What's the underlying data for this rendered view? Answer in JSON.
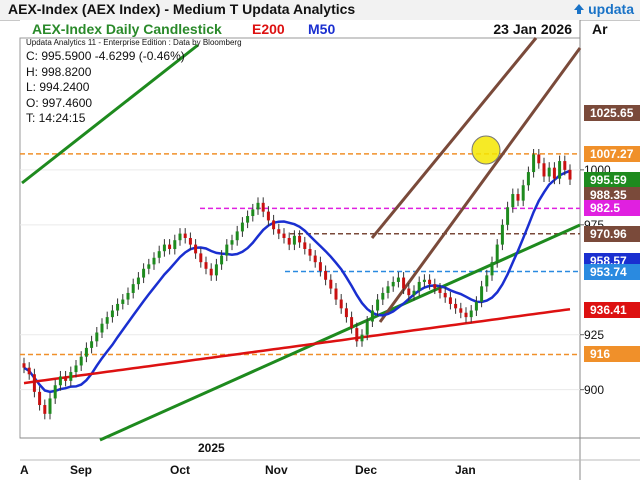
{
  "header": {
    "title": "AEX-Index (AEX Index) - Medium T  Updata Analytics",
    "brand": "updata"
  },
  "subheader": {
    "title": "AEX-Index Daily Candlestick",
    "ema": "E200",
    "ma": "M50",
    "date": "23 Jan 2026"
  },
  "right_axis_header": "Ar",
  "info": {
    "source": "Updata Analytics 11 - Enterprise Edition : Data by Bloomberg",
    "close": "C: 995.5900  -4.6299 (-0.46%)",
    "high": "H: 998.8200",
    "low": "L: 994.2400",
    "open": "O: 997.4600",
    "time": "T: 14:24:15"
  },
  "chart_data": {
    "type": "candlestick",
    "title": "AEX-Index Daily Candlestick",
    "y_range": [
      878,
      1060
    ],
    "y_ticks": [
      900,
      925,
      975,
      1000
    ],
    "x_labels": [
      "A",
      "Sep",
      "Oct",
      "Nov",
      "Dec",
      "Jan"
    ],
    "year_label": "2025",
    "price_labels": [
      {
        "text": "1025.65",
        "value": 1025.65,
        "color": "#7a4a3a"
      },
      {
        "text": "1007.27",
        "value": 1007.27,
        "color": "#f0902a"
      },
      {
        "text": "995.59",
        "value": 995.59,
        "color": "#1e8a1e"
      },
      {
        "text": "988.35",
        "value": 988.35,
        "color": "#7a4a3a"
      },
      {
        "text": "982.5",
        "value": 982.5,
        "color": "#e020e0"
      },
      {
        "text": "970.96",
        "value": 970.96,
        "color": "#7a4a3a"
      },
      {
        "text": "958.57",
        "value": 958.57,
        "color": "#1a2fd0"
      },
      {
        "text": "953.74",
        "value": 953.74,
        "color": "#2a8ae0"
      },
      {
        "text": "936.41",
        "value": 936.41,
        "color": "#d11"
      },
      {
        "text": "916",
        "value": 916,
        "color": "#f0902a"
      }
    ],
    "levels": [
      {
        "value": 1007.27,
        "color": "#f0902a"
      },
      {
        "value": 982.5,
        "color": "#e020e0"
      },
      {
        "value": 970.96,
        "color": "#7a4a3a"
      },
      {
        "value": 953.74,
        "color": "#2a8ae0"
      },
      {
        "value": 916,
        "color": "#f0902a"
      }
    ],
    "closes": [
      910,
      907,
      899,
      893,
      889,
      896,
      902,
      906,
      904,
      908,
      911,
      915,
      919,
      922,
      926,
      930,
      933,
      936,
      939,
      941,
      944,
      948,
      951,
      955,
      957,
      960,
      963,
      966,
      964,
      968,
      971,
      969,
      966,
      962,
      958,
      955,
      952,
      957,
      961,
      966,
      968,
      972,
      976,
      979,
      982,
      985,
      981,
      977,
      973,
      971,
      969,
      966,
      970,
      967,
      964,
      961,
      958,
      954,
      950,
      946,
      941,
      937,
      933,
      928,
      922,
      925,
      931,
      936,
      941,
      944,
      947,
      949,
      951,
      946,
      943,
      945,
      949,
      950,
      948,
      946,
      944,
      942,
      939,
      937,
      935,
      933,
      936,
      940,
      947,
      952,
      958,
      966,
      975,
      983,
      989,
      986,
      993,
      999,
      1007,
      1003,
      997,
      1001,
      996,
      1004,
      1000,
      995.59
    ]
  }
}
